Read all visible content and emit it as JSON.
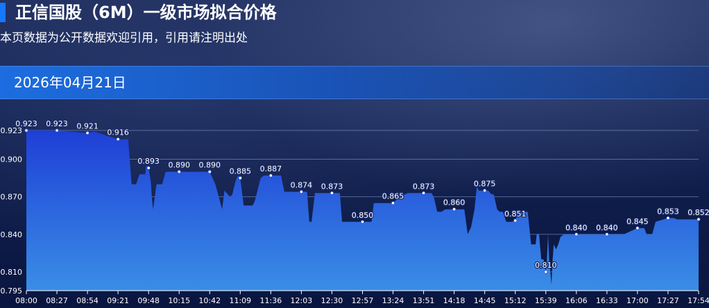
{
  "header": {
    "title": "正信国股（6M）一级市场拟合价格",
    "subtitle": "本页数据为公开数据欢迎引用，引用请注明出处",
    "date": "2026年04月21日"
  },
  "colors": {
    "accent": "#1677ff",
    "area_top": "#1e3fd6",
    "area_bottom": "#3a8de6",
    "grid": "#8da2cf"
  },
  "chart_data": {
    "type": "area",
    "title": "",
    "xlabel": "",
    "ylabel": "",
    "ylim": [
      0.795,
      0.933
    ],
    "y_ticks": [
      "0.795",
      "0.810",
      "0.840",
      "0.870",
      "0.900",
      "0.923"
    ],
    "x_ticks": [
      "08:00",
      "08:27",
      "08:54",
      "09:21",
      "09:48",
      "10:15",
      "10:42",
      "11:09",
      "11:36",
      "12:03",
      "12:30",
      "12:57",
      "13:24",
      "13:51",
      "14:18",
      "14:45",
      "15:12",
      "15:39",
      "16:06",
      "16:33",
      "17:00",
      "17:27",
      "17:54"
    ],
    "grid": true,
    "legend": "none",
    "series": [
      {
        "x": [
          "08:00",
          "08:27",
          "08:54",
          "09:00",
          "09:21",
          "09:30",
          "09:33",
          "09:37",
          "09:40",
          "09:45",
          "09:46",
          "09:48",
          "09:50",
          "09:51",
          "09:52",
          "09:55",
          "10:00",
          "10:03",
          "10:15",
          "10:30",
          "10:42",
          "10:47",
          "10:50",
          "10:53",
          "10:55",
          "10:58",
          "11:00",
          "11:02",
          "11:05",
          "11:07",
          "11:09",
          "11:12",
          "11:20",
          "11:22",
          "11:27",
          "11:30",
          "11:36",
          "11:40",
          "11:45",
          "11:48",
          "12:03",
          "12:08",
          "12:10",
          "12:12",
          "12:15",
          "12:18",
          "12:25",
          "12:30",
          "12:37",
          "12:39",
          "12:50",
          "12:57",
          "13:05",
          "13:07",
          "13:10",
          "13:24",
          "13:30",
          "13:37",
          "13:45",
          "13:51",
          "13:58",
          "14:00",
          "14:03",
          "14:05",
          "14:07",
          "14:10",
          "14:18",
          "14:27",
          "14:30",
          "14:33",
          "14:36",
          "14:38",
          "14:40",
          "14:43",
          "14:45",
          "14:48",
          "14:51",
          "14:53",
          "14:56",
          "14:58",
          "15:00",
          "15:01",
          "15:04",
          "15:06",
          "15:09",
          "15:12",
          "15:15",
          "15:17",
          "15:21",
          "15:23",
          "15:26",
          "15:28",
          "15:30",
          "15:31",
          "15:33",
          "15:35",
          "15:36",
          "15:37",
          "15:39",
          "15:40",
          "15:41",
          "15:42",
          "15:43",
          "15:44",
          "15:45",
          "15:46",
          "15:48",
          "15:50",
          "15:52",
          "15:55",
          "15:57",
          "16:00",
          "16:06",
          "16:20",
          "16:33",
          "16:40",
          "16:48",
          "17:00",
          "17:06",
          "17:08",
          "17:13",
          "17:16",
          "17:27",
          "17:32",
          "17:35",
          "17:54"
        ],
        "y": [
          0.923,
          0.923,
          0.921,
          0.922,
          0.916,
          0.916,
          0.88,
          0.88,
          0.888,
          0.888,
          0.895,
          0.893,
          0.882,
          0.868,
          0.86,
          0.88,
          0.88,
          0.89,
          0.89,
          0.89,
          0.89,
          0.88,
          0.87,
          0.86,
          0.875,
          0.872,
          0.87,
          0.872,
          0.883,
          0.887,
          0.885,
          0.863,
          0.863,
          0.867,
          0.885,
          0.887,
          0.887,
          0.887,
          0.887,
          0.874,
          0.874,
          0.874,
          0.85,
          0.85,
          0.873,
          0.873,
          0.873,
          0.873,
          0.873,
          0.85,
          0.85,
          0.85,
          0.85,
          0.865,
          0.865,
          0.865,
          0.87,
          0.873,
          0.873,
          0.873,
          0.873,
          0.87,
          0.858,
          0.858,
          0.858,
          0.86,
          0.86,
          0.86,
          0.84,
          0.846,
          0.86,
          0.878,
          0.875,
          0.875,
          0.875,
          0.875,
          0.872,
          0.872,
          0.86,
          0.858,
          0.858,
          0.858,
          0.85,
          0.85,
          0.85,
          0.851,
          0.858,
          0.858,
          0.858,
          0.858,
          0.832,
          0.832,
          0.832,
          0.84,
          0.84,
          0.82,
          0.82,
          0.82,
          0.81,
          0.82,
          0.84,
          0.818,
          0.81,
          0.8,
          0.82,
          0.832,
          0.828,
          0.832,
          0.838,
          0.84,
          0.84,
          0.84,
          0.84,
          0.84,
          0.84,
          0.84,
          0.84,
          0.845,
          0.845,
          0.84,
          0.84,
          0.85,
          0.853,
          0.853,
          0.852,
          0.852
        ],
        "labels": [
          {
            "x": "08:00",
            "y": 0.923,
            "text": "0.923"
          },
          {
            "x": "08:27",
            "y": 0.923,
            "text": "0.923"
          },
          {
            "x": "08:54",
            "y": 0.921,
            "text": "0.921"
          },
          {
            "x": "09:21",
            "y": 0.916,
            "text": "0.916"
          },
          {
            "x": "09:48",
            "y": 0.893,
            "text": "0.893"
          },
          {
            "x": "10:15",
            "y": 0.89,
            "text": "0.890"
          },
          {
            "x": "10:42",
            "y": 0.89,
            "text": "0.890"
          },
          {
            "x": "11:09",
            "y": 0.885,
            "text": "0.885"
          },
          {
            "x": "11:36",
            "y": 0.887,
            "text": "0.887"
          },
          {
            "x": "12:03",
            "y": 0.874,
            "text": "0.874"
          },
          {
            "x": "12:30",
            "y": 0.873,
            "text": "0.873"
          },
          {
            "x": "12:57",
            "y": 0.85,
            "text": "0.850"
          },
          {
            "x": "13:24",
            "y": 0.865,
            "text": "0.865"
          },
          {
            "x": "13:51",
            "y": 0.873,
            "text": "0.873"
          },
          {
            "x": "14:18",
            "y": 0.86,
            "text": "0.860"
          },
          {
            "x": "14:45",
            "y": 0.875,
            "text": "0.875"
          },
          {
            "x": "15:12",
            "y": 0.851,
            "text": "0.851"
          },
          {
            "x": "15:39",
            "y": 0.81,
            "text": "0.810"
          },
          {
            "x": "16:06",
            "y": 0.84,
            "text": "0.840"
          },
          {
            "x": "16:33",
            "y": 0.84,
            "text": "0.840"
          },
          {
            "x": "17:00",
            "y": 0.845,
            "text": "0.845"
          },
          {
            "x": "17:27",
            "y": 0.853,
            "text": "0.853"
          },
          {
            "x": "17:54",
            "y": 0.852,
            "text": "0.852"
          }
        ]
      }
    ]
  }
}
